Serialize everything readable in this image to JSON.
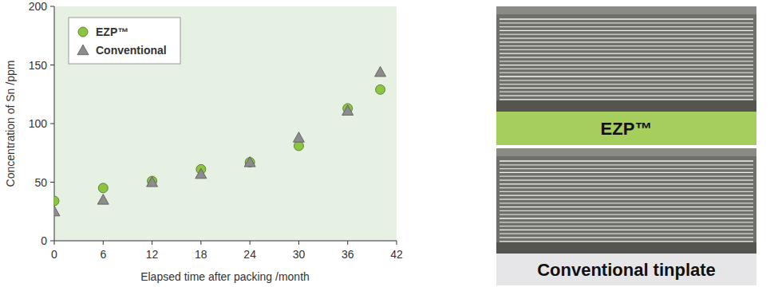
{
  "chart_data": {
    "type": "scatter",
    "x_label": "Elapsed time after packing /month",
    "y_label": "Concentration of Sn /ppm",
    "x": [
      0,
      6,
      12,
      18,
      24,
      30,
      36,
      40
    ],
    "series": [
      {
        "name": "EZP™",
        "color": "#8cc63f",
        "marker": "circle",
        "values": [
          34,
          45,
          51,
          61,
          67,
          81,
          113,
          129
        ]
      },
      {
        "name": "Conventional",
        "color": "#8c8c8c",
        "marker": "triangle",
        "values": [
          25,
          35,
          50,
          57,
          67,
          88,
          111,
          144
        ]
      }
    ],
    "xlim": [
      0,
      42
    ],
    "xticks": [
      0,
      6,
      12,
      18,
      24,
      30,
      36,
      42
    ],
    "ylim": [
      0,
      200
    ],
    "yticks": [
      0,
      50,
      100,
      150,
      200
    ],
    "grid": false,
    "legend": "upper left"
  },
  "image_panels": [
    {
      "label": "EZP™",
      "color": "#a6ce5c"
    },
    {
      "label": "Conventional tinplate",
      "color": "#e6e6e8"
    }
  ]
}
